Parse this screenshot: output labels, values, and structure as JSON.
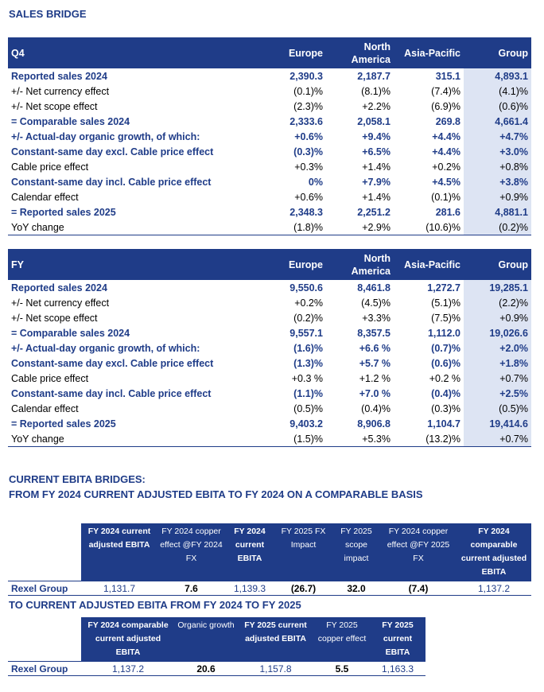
{
  "title": "SALES BRIDGE",
  "q4": {
    "header": [
      "Q4",
      "Europe",
      "North America",
      "Asia-Pacific",
      "Group"
    ],
    "rows": [
      [
        "Reported sales 2024",
        "2,390.3",
        "2,187.7",
        "315.1",
        "4,893.1"
      ],
      [
        "+/- Net currency effect",
        "(0.1)%",
        "(8.1)%",
        "(7.4)%",
        "(4.1)%"
      ],
      [
        "+/- Net scope effect",
        "(2.3)%",
        "+2.2%",
        "(6.9)%",
        "(0.6)%"
      ],
      [
        "= Comparable sales 2024",
        "2,333.6",
        "2,058.1",
        "269.8",
        "4,661.4"
      ],
      [
        "+/- Actual-day organic growth, of which:",
        "+0.6%",
        "+9.4%",
        "+4.4%",
        "+4.7%"
      ],
      [
        "Constant-same day excl. Cable price effect",
        "(0.3)%",
        "+6.5%",
        "+4.4%",
        "+3.0%"
      ],
      [
        "Cable price effect",
        "+0.3%",
        "+1.4%",
        "+0.2%",
        "+0.8%"
      ],
      [
        "Constant-same day incl. Cable price effect",
        "0%",
        "+7.9%",
        "+4.5%",
        "+3.8%"
      ],
      [
        "Calendar effect",
        "+0.6%",
        "+1.4%",
        "(0.1)%",
        "+0.9%"
      ],
      [
        "= Reported sales 2025",
        "2,348.3",
        "2,251.2",
        "281.6",
        "4,881.1"
      ],
      [
        "YoY change",
        "(1.8)%",
        "+2.9%",
        "(10.6)%",
        "(0.2)%"
      ]
    ]
  },
  "fy": {
    "header": [
      "FY",
      "Europe",
      "North America",
      "Asia-Pacific",
      "Group"
    ],
    "rows": [
      [
        "Reported sales 2024",
        "9,550.6",
        "8,461.8",
        "1,272.7",
        "19,285.1"
      ],
      [
        "+/- Net currency effect",
        "+0.2%",
        "(4.5)%",
        "(5.1)%",
        "(2.2)%"
      ],
      [
        "+/- Net scope effect",
        "(0.2)%",
        "+3.3%",
        "(7.5)%",
        "+0.9%"
      ],
      [
        "= Comparable sales 2024",
        "9,557.1",
        "8,357.5",
        "1,112.0",
        "19,026.6"
      ],
      [
        "+/- Actual-day organic growth, of which:",
        "(1.6)%",
        "+6.6 %",
        "(0.7)%",
        "+2.0%"
      ],
      [
        "Constant-same day excl. Cable price effect",
        "(1.3)%",
        "+5.7 %",
        "(0.6)%",
        "+1.8%"
      ],
      [
        "Cable price effect",
        "+0.3 %",
        "+1.2 %",
        "+0.2 %",
        "+0.7%"
      ],
      [
        "Constant-same day incl. Cable price effect",
        "(1.1)%",
        "+7.0 %",
        "(0.4)%",
        "+2.5%"
      ],
      [
        "Calendar effect",
        "(0.5)%",
        "(0.4)%",
        "(0.3)%",
        "(0.5)%"
      ],
      [
        "= Reported sales 2025",
        "9,403.2",
        "8,906.8",
        "1,104.7",
        "19,414.6"
      ],
      [
        "YoY change",
        "(1.5)%",
        "+5.3%",
        "(13.2)%",
        "+0.7%"
      ]
    ]
  },
  "ebita": {
    "heading": [
      "CURRENT EBITA BRIDGES:",
      "FROM FY 2024 CURRENT ADJUSTED EBITA TO FY 2024 ON A COMPARABLE BASIS"
    ],
    "table": {
      "header": [
        "FY 2024 current adjusted EBITA",
        "FY 2024 copper effect @FY 2024 FX",
        "FY 2024 current EBITA",
        "FY 2025 FX Impact",
        "FY 2025 scope impact",
        "FY 2024 copper effect @FY 2025 FX",
        "FY 2024 comparable current adjusted EBITA"
      ],
      "rows": [
        [
          "Rexel Group",
          "1,131.7",
          "7.6",
          "1,139.3",
          "(26.7)",
          "32.0",
          "(7.4)",
          "1,137.2"
        ]
      ]
    }
  },
  "ebita2": {
    "heading": "TO CURRENT ADJUSTED EBITA FROM FY 2024 TO FY 2025",
    "table": {
      "header": [
        "FY 2024 comparable current adjusted EBITA",
        "Organic growth",
        "FY 2025 current adjusted EBITA",
        "FY 2025 copper effect",
        "FY 2025 current EBITA"
      ],
      "rows": [
        [
          "Rexel Group",
          "1,137.2",
          "20.6",
          "1,157.8",
          "5.5",
          "1,163.3"
        ]
      ]
    }
  }
}
